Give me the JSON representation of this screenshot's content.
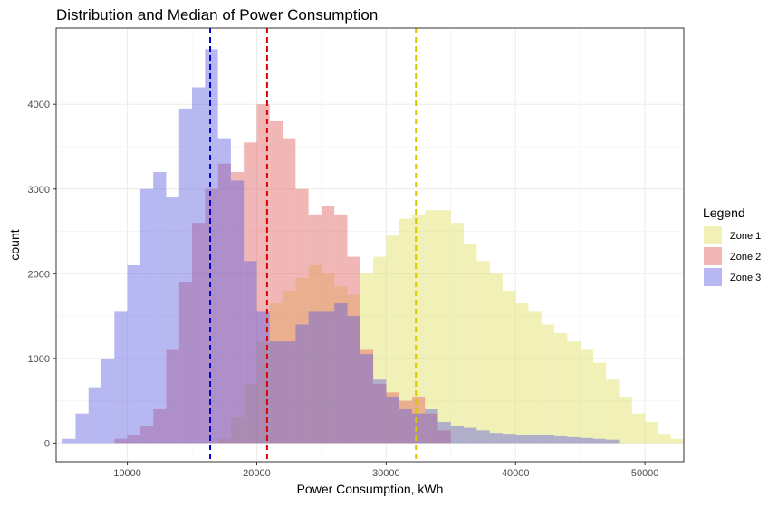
{
  "chart_data": {
    "type": "histogram",
    "title": "Distribution and Median of Power Consumption",
    "xlabel": "Power Consumption, kWh",
    "ylabel": "count",
    "xlim": [
      4500,
      53000
    ],
    "ylim": [
      -220,
      4900
    ],
    "x_ticks": [
      10000,
      20000,
      30000,
      40000,
      50000
    ],
    "y_ticks": [
      0,
      1000,
      2000,
      3000,
      4000
    ],
    "grid": true,
    "legend_placement": "right",
    "legend_title": "Legend",
    "bin_width": 1000,
    "series": [
      {
        "name": "Zone 1",
        "color": "#e0e060",
        "opacity": 0.45,
        "median": 32300,
        "bin_starts": [
          17000,
          18000,
          19000,
          20000,
          21000,
          22000,
          23000,
          24000,
          25000,
          26000,
          27000,
          28000,
          29000,
          30000,
          31000,
          32000,
          33000,
          34000,
          35000,
          36000,
          37000,
          38000,
          39000,
          40000,
          41000,
          42000,
          43000,
          44000,
          45000,
          46000,
          47000,
          48000,
          49000,
          50000,
          51000,
          52000
        ],
        "counts": [
          50,
          300,
          700,
          1200,
          1650,
          1800,
          1950,
          2100,
          2000,
          1850,
          1750,
          2000,
          2200,
          2450,
          2650,
          2700,
          2750,
          2750,
          2600,
          2350,
          2150,
          2000,
          1800,
          1650,
          1550,
          1400,
          1300,
          1200,
          1100,
          950,
          750,
          550,
          350,
          250,
          110,
          50
        ]
      },
      {
        "name": "Zone 2",
        "color": "#e06060",
        "opacity": 0.45,
        "median": 20800,
        "bin_starts": [
          9000,
          10000,
          11000,
          12000,
          13000,
          14000,
          15000,
          16000,
          17000,
          18000,
          19000,
          20000,
          21000,
          22000,
          23000,
          24000,
          25000,
          26000,
          27000,
          28000,
          29000,
          30000,
          31000,
          32000,
          33000,
          34000
        ],
        "counts": [
          50,
          100,
          200,
          400,
          1100,
          1900,
          2600,
          3000,
          3300,
          3200,
          3550,
          4000,
          3800,
          3600,
          3000,
          2700,
          2800,
          2700,
          2200,
          1100,
          700,
          600,
          500,
          550,
          350,
          150
        ]
      },
      {
        "name": "Zone 3",
        "color": "#6060e0",
        "opacity": 0.45,
        "median": 16400,
        "bin_starts": [
          5000,
          6000,
          7000,
          8000,
          9000,
          10000,
          11000,
          12000,
          13000,
          14000,
          15000,
          16000,
          17000,
          18000,
          19000,
          20000,
          21000,
          22000,
          23000,
          24000,
          25000,
          26000,
          27000,
          28000,
          29000,
          30000,
          31000,
          32000,
          33000,
          34000,
          35000,
          36000,
          37000,
          38000,
          39000,
          40000,
          41000,
          42000,
          43000,
          44000,
          45000,
          46000,
          47000
        ],
        "counts": [
          50,
          350,
          650,
          1000,
          1550,
          2100,
          3000,
          3200,
          2900,
          3950,
          4200,
          4650,
          3600,
          3100,
          2150,
          1550,
          1200,
          1200,
          1400,
          1550,
          1550,
          1650,
          1500,
          1050,
          750,
          550,
          400,
          350,
          400,
          250,
          200,
          180,
          150,
          120,
          110,
          100,
          90,
          90,
          80,
          70,
          60,
          50,
          40
        ]
      }
    ]
  }
}
